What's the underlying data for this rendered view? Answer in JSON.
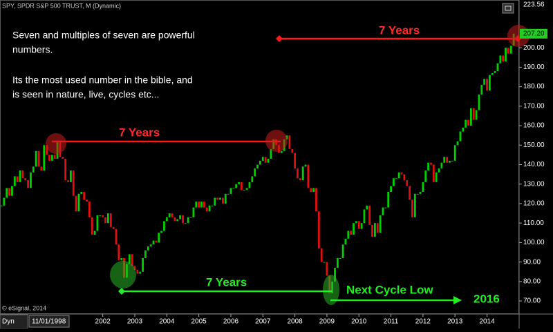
{
  "chart_data": {
    "type": "candlestick",
    "title": "SPY, SPDR S&P 500 TRUST, M (Dynamic)",
    "start_date": "11/01/1998",
    "values": [
      119,
      123,
      128,
      124,
      129,
      134,
      131,
      137,
      133,
      132,
      128,
      136,
      139,
      147,
      139,
      137,
      150,
      145,
      142,
      145,
      143,
      152,
      144,
      143,
      132,
      131,
      137,
      124,
      116,
      125,
      126,
      122,
      121,
      113,
      104,
      106,
      114,
      114,
      113,
      110,
      115,
      108,
      107,
      99,
      91,
      92,
      82,
      89,
      94,
      88,
      86,
      84,
      85,
      92,
      96,
      98,
      99,
      101,
      100,
      105,
      106,
      111,
      113,
      115,
      113,
      111,
      112,
      114,
      110,
      110,
      113,
      113,
      118,
      121,
      118,
      121,
      118,
      116,
      119,
      119,
      123,
      122,
      123,
      120,
      125,
      125,
      128,
      128,
      130,
      131,
      127,
      127,
      128,
      131,
      134,
      138,
      140,
      142,
      144,
      141,
      143,
      148,
      153,
      150,
      146,
      147,
      153,
      155,
      148,
      146,
      138,
      133,
      132,
      139,
      140,
      128,
      126,
      128,
      116,
      97,
      90,
      90,
      83,
      74,
      80,
      87,
      92,
      92,
      99,
      102,
      106,
      104,
      110,
      111,
      107,
      110,
      117,
      119,
      109,
      103,
      110,
      105,
      114,
      118,
      118,
      126,
      129,
      133,
      133,
      136,
      135,
      132,
      129,
      122,
      113,
      125,
      125,
      126,
      131,
      137,
      141,
      140,
      131,
      136,
      138,
      141,
      144,
      141,
      142,
      142,
      150,
      152,
      157,
      159,
      163,
      160,
      169,
      163,
      168,
      176,
      181,
      184,
      178,
      186,
      187,
      188,
      192,
      196,
      193,
      200,
      197,
      201,
      207.2
    ],
    "up_color": "#00d000",
    "down_color": "#e01010",
    "ylim": [
      63.3,
      224.5
    ],
    "yticks": [
      {
        "value": 70,
        "label": "70.00"
      },
      {
        "value": 80,
        "label": "80.00"
      },
      {
        "value": 90,
        "label": "90.00"
      },
      {
        "value": 100,
        "label": "100.00"
      },
      {
        "value": 110,
        "label": "110.00"
      },
      {
        "value": 120,
        "label": "120.00"
      },
      {
        "value": 130,
        "label": "130.00"
      },
      {
        "value": 140,
        "label": "140.00"
      },
      {
        "value": 150,
        "label": "150.00"
      },
      {
        "value": 160,
        "label": "160.00"
      },
      {
        "value": 170,
        "label": "170.00"
      },
      {
        "value": 180,
        "label": "180.00"
      },
      {
        "value": 190,
        "label": "190.00"
      },
      {
        "value": 200,
        "label": "200.00"
      }
    ],
    "ymax_label": {
      "value": 223.56,
      "label": "223.56"
    },
    "last_label": {
      "value": 207.2,
      "label": "207.20"
    },
    "x_labels": [
      "2002",
      "2003",
      "2004",
      "2005",
      "2006",
      "2007",
      "2008",
      "2009",
      "2010",
      "2011",
      "2012",
      "2013",
      "2014"
    ],
    "note": [
      "Seven and multiples of seven are powerful",
      "numbers.",
      "Its the most used number in the bible, and",
      "is seen in nature, live, cycles etc..."
    ],
    "cycle_label": "7 Years",
    "next_label": "Next Cycle Low",
    "next_year": "2016",
    "copyright": "© eSignal, 2014",
    "dyn": "Dyn"
  }
}
